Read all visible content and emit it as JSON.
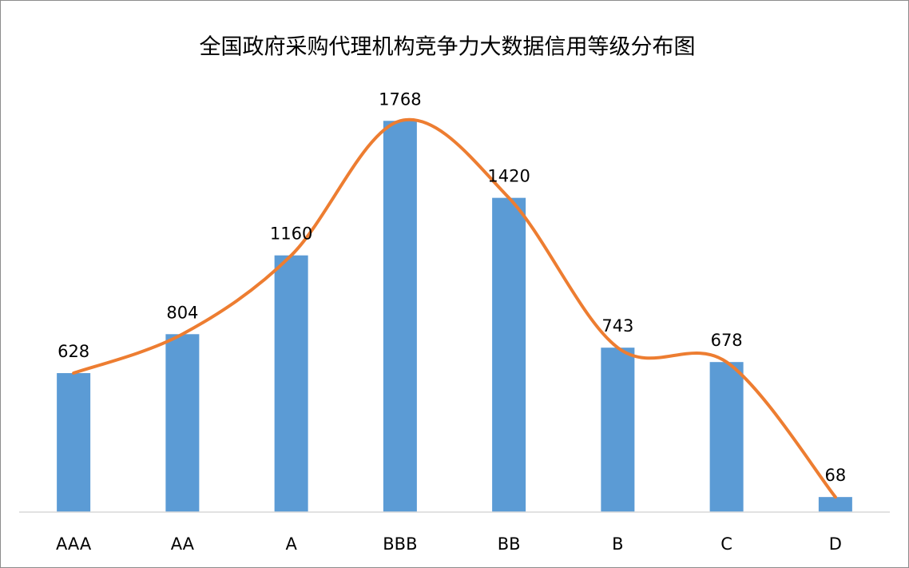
{
  "chart_data": {
    "type": "bar",
    "title": "全国政府采购代理机构竞争力大数据信用等级分布图",
    "categories": [
      "AAA",
      "AA",
      "A",
      "BBB",
      "BB",
      "B",
      "C",
      "D"
    ],
    "values": [
      628,
      804,
      1160,
      1768,
      1420,
      743,
      678,
      68
    ],
    "color": "#5b9bd5",
    "line_color": "#ed7d31",
    "smooth_line": true,
    "ylim": [
      0,
      2000
    ],
    "data_labels": true
  }
}
